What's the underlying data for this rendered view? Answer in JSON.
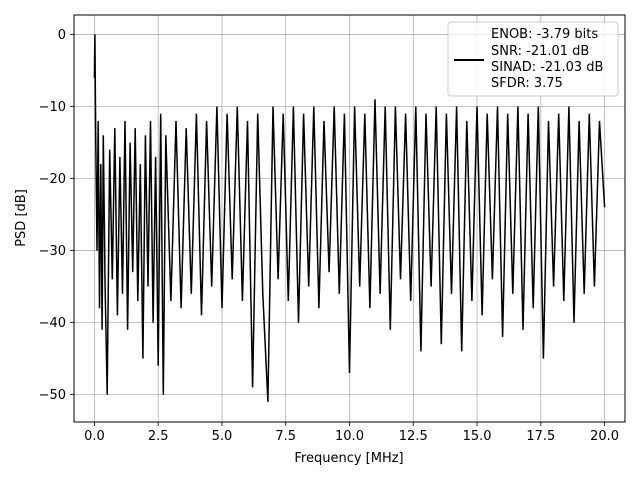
{
  "chart_data": {
    "type": "line",
    "xlabel": "Frequency [MHz]",
    "ylabel": "PSD [dB]",
    "xlim": [
      -0.8,
      20.8
    ],
    "ylim": [
      -53.8,
      2.7
    ],
    "grid": true,
    "x_ticks": [
      0.0,
      2.5,
      5.0,
      7.5,
      10.0,
      12.5,
      15.0,
      17.5,
      20.0
    ],
    "x_tick_labels": [
      "0.0",
      "2.5",
      "5.0",
      "7.5",
      "10.0",
      "12.5",
      "15.0",
      "17.5",
      "20.0"
    ],
    "y_ticks": [
      0,
      -10,
      -20,
      -30,
      -40,
      -50
    ],
    "y_tick_labels": [
      "0",
      "−10",
      "−20",
      "−30",
      "−40",
      "−50"
    ],
    "legend": {
      "placement": "top-right",
      "entries": [
        "ENOB: -3.79 bits",
        "SNR: -21.01 dB",
        "SINAD: -21.03 dB",
        "SFDR: 3.75"
      ]
    },
    "series": [
      {
        "color": "#000000",
        "x": [
          0.0,
          0.02,
          0.05,
          0.1,
          0.15,
          0.2,
          0.25,
          0.3,
          0.35,
          0.42,
          0.5,
          0.6,
          0.7,
          0.8,
          0.9,
          1.0,
          1.1,
          1.2,
          1.3,
          1.4,
          1.5,
          1.6,
          1.7,
          1.8,
          1.9,
          2.0,
          2.1,
          2.2,
          2.3,
          2.4,
          2.5,
          2.6,
          2.7,
          2.8,
          3.0,
          3.2,
          3.4,
          3.6,
          3.8,
          4.0,
          4.2,
          4.4,
          4.6,
          4.8,
          5.0,
          5.2,
          5.4,
          5.6,
          5.8,
          6.0,
          6.2,
          6.4,
          6.6,
          6.8,
          7.0,
          7.2,
          7.4,
          7.6,
          7.8,
          8.0,
          8.2,
          8.4,
          8.6,
          8.8,
          9.0,
          9.2,
          9.4,
          9.6,
          9.8,
          10.0,
          10.2,
          10.4,
          10.6,
          10.8,
          11.0,
          11.2,
          11.4,
          11.6,
          11.8,
          12.0,
          12.2,
          12.4,
          12.6,
          12.8,
          13.0,
          13.2,
          13.4,
          13.6,
          13.8,
          14.0,
          14.2,
          14.4,
          14.6,
          14.8,
          15.0,
          15.2,
          15.4,
          15.6,
          15.8,
          16.0,
          16.2,
          16.4,
          16.6,
          16.8,
          17.0,
          17.2,
          17.4,
          17.6,
          17.8,
          18.0,
          18.2,
          18.4,
          18.6,
          18.8,
          19.0,
          19.2,
          19.4,
          19.6,
          19.8,
          20.0
        ],
        "y": [
          -6,
          0,
          -14,
          -30,
          -12,
          -38,
          -18,
          -41,
          -14,
          -35,
          -50,
          -16,
          -34,
          -13,
          -39,
          -17,
          -36,
          -12,
          -41,
          -15,
          -33,
          -13,
          -37,
          -18,
          -45,
          -14,
          -35,
          -12,
          -40,
          -17,
          -46,
          -11,
          -50,
          -14,
          -37,
          -12,
          -38,
          -13,
          -36,
          -11,
          -39,
          -12,
          -35,
          -10,
          -38,
          -11,
          -34,
          -10,
          -37,
          -12,
          -49,
          -11,
          -36,
          -51,
          -10,
          -34,
          -11,
          -37,
          -10,
          -40,
          -11,
          -35,
          -10,
          -38,
          -12,
          -33,
          -10,
          -36,
          -11,
          -47,
          -10,
          -35,
          -11,
          -38,
          -9,
          -36,
          -10,
          -41,
          -10,
          -34,
          -11,
          -37,
          -10,
          -44,
          -11,
          -35,
          -10,
          -43,
          -11,
          -36,
          -10,
          -44,
          -12,
          -37,
          -10,
          -39,
          -11,
          -34,
          -10,
          -42,
          -11,
          -36,
          -10,
          -41,
          -11,
          -38,
          -10,
          -45,
          -12,
          -35,
          -11,
          -37,
          -10,
          -40,
          -12,
          -36,
          -11,
          -35,
          -12,
          -24
        ]
      }
    ]
  }
}
